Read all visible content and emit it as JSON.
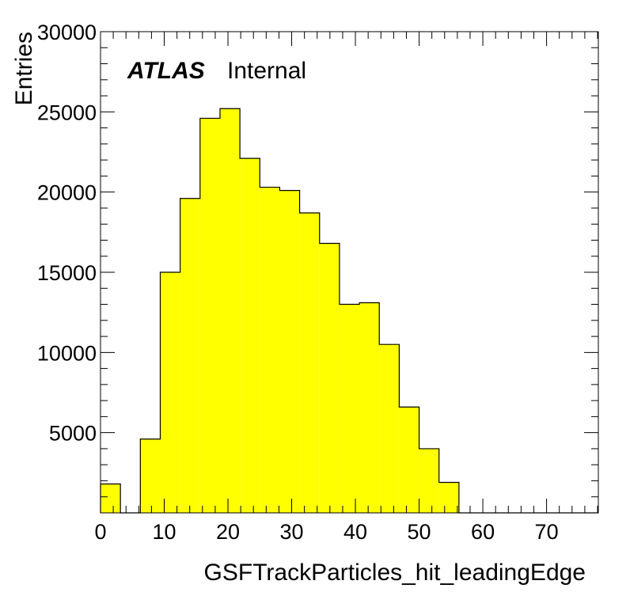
{
  "chart_data": {
    "type": "bar",
    "style": "histogram",
    "xlabel": "GSFTrackParticles_hit_leadingEdge",
    "ylabel": "Entries",
    "xlim": [
      0,
      78.125
    ],
    "ylim": [
      0,
      30000
    ],
    "x_ticks": [
      0,
      10,
      20,
      30,
      40,
      50,
      60,
      70
    ],
    "y_ticks": [
      5000,
      10000,
      15000,
      20000,
      25000,
      30000
    ],
    "bin_width": 3.125,
    "bin_edges": [
      0,
      3.125,
      6.25,
      9.375,
      12.5,
      15.625,
      18.75,
      21.875,
      25,
      28.125,
      31.25,
      34.375,
      37.5,
      40.625,
      43.75,
      46.875,
      50,
      53.125,
      56.25,
      59.375,
      62.5,
      65.625,
      68.75,
      71.875,
      75,
      78.125
    ],
    "values": [
      1800,
      0,
      4600,
      15000,
      19600,
      24600,
      25200,
      22100,
      20300,
      20100,
      18700,
      16800,
      13000,
      13100,
      10500,
      6600,
      4000,
      1900,
      0,
      0,
      0,
      0,
      0,
      0,
      0
    ],
    "fill_color": "#ffff00",
    "line_color": "#000000",
    "grid": false,
    "annotation": {
      "experiment": "ATLAS",
      "label": "Internal"
    }
  }
}
